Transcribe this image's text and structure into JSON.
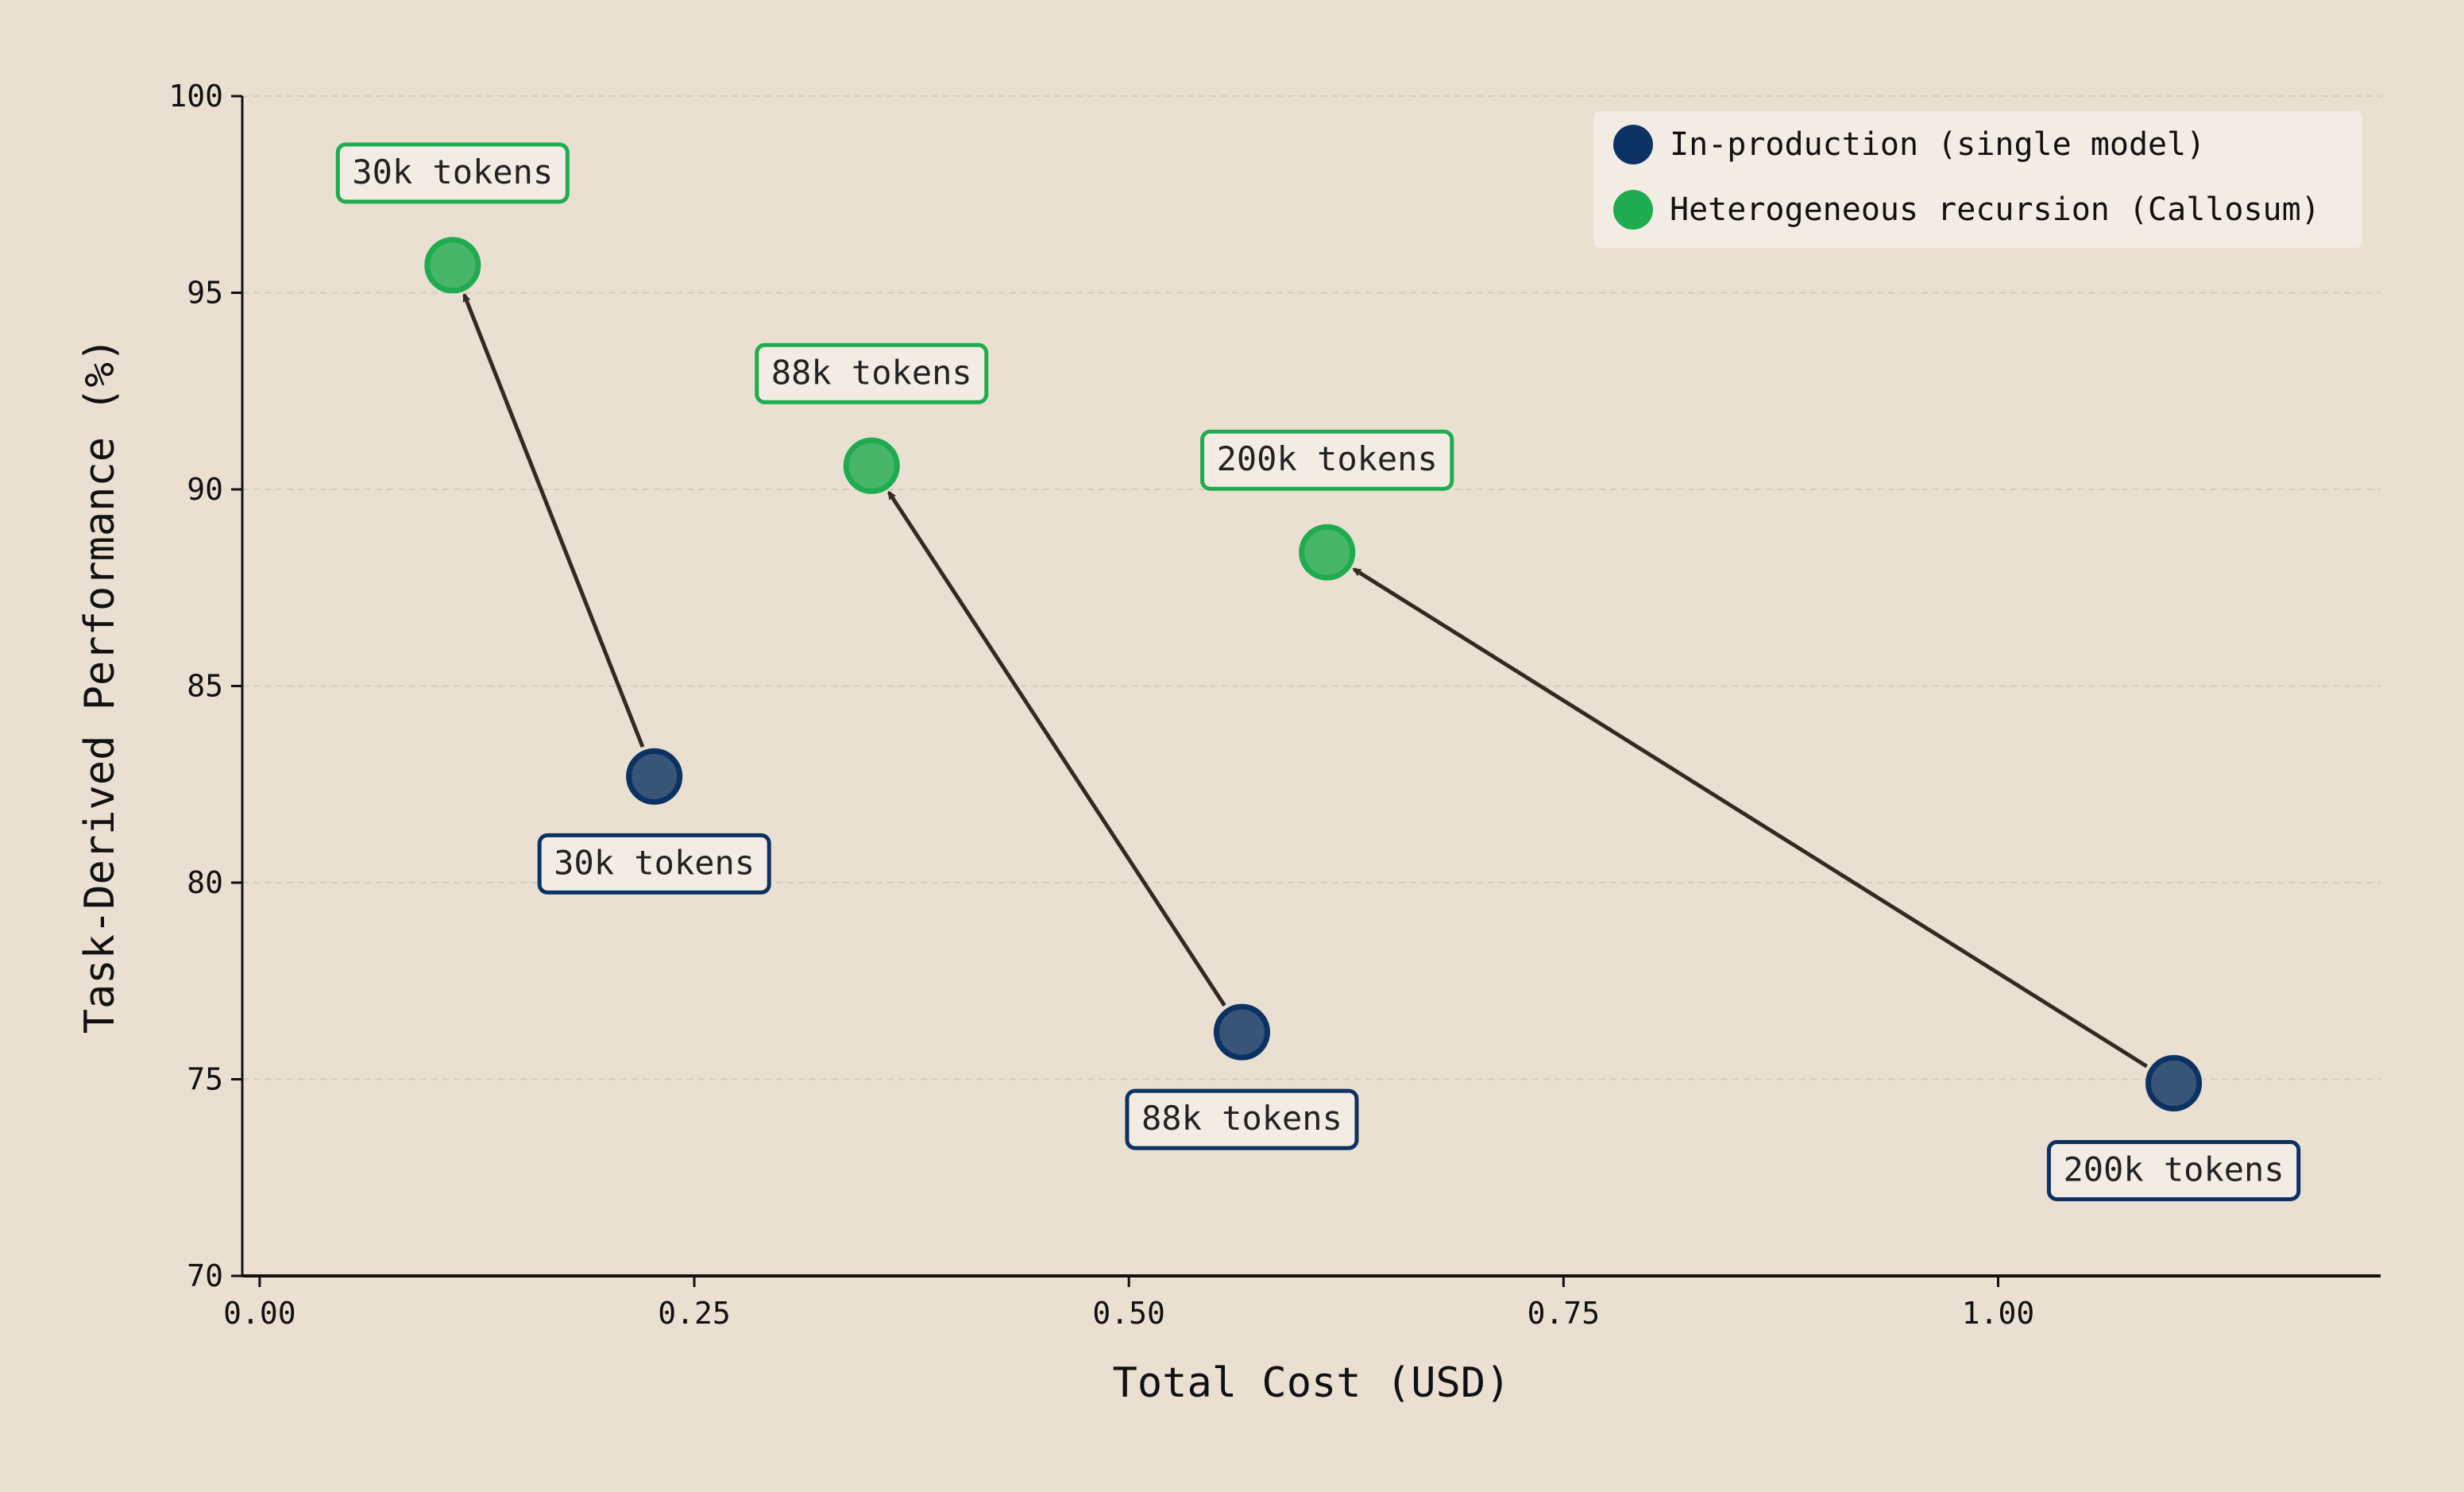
{
  "chart_data": {
    "type": "scatter",
    "xlabel": "Total Cost (USD)",
    "ylabel": "Task-Derived Performance (%)",
    "xlim": [
      -0.01,
      1.22
    ],
    "ylim": [
      70,
      100
    ],
    "xticks": [
      "0.00",
      "0.25",
      "0.50",
      "0.75",
      "1.00"
    ],
    "xtick_values": [
      0,
      0.25,
      0.5,
      0.75,
      1.0
    ],
    "yticks": [
      "70",
      "75",
      "80",
      "85",
      "90",
      "95",
      "100"
    ],
    "ytick_values": [
      70,
      75,
      80,
      85,
      90,
      95,
      100
    ],
    "grid": "horizontal dashed",
    "legend_position": "top-right",
    "series": [
      {
        "name": "In-production (single model)",
        "color": "#0B3262",
        "points": [
          {
            "x": 0.227,
            "y": 82.7,
            "label": "30k tokens"
          },
          {
            "x": 0.565,
            "y": 76.2,
            "label": "88k tokens"
          },
          {
            "x": 1.101,
            "y": 74.9,
            "label": "200k tokens"
          }
        ]
      },
      {
        "name": "Heterogeneous recursion (Callosum)",
        "color": "#1FAB50",
        "points": [
          {
            "x": 0.111,
            "y": 95.7,
            "label": "30k tokens"
          },
          {
            "x": 0.352,
            "y": 90.6,
            "label": "88k tokens"
          },
          {
            "x": 0.614,
            "y": 88.4,
            "label": "200k tokens"
          }
        ]
      }
    ],
    "arrows": "from each In-production point to the Heterogeneous recursion point with the same token budget"
  },
  "colors": {
    "background": "#EAE0D2",
    "legend_bg": "#F3ECE4",
    "arrow": "#352A22",
    "grid": "#D6CCBE"
  }
}
